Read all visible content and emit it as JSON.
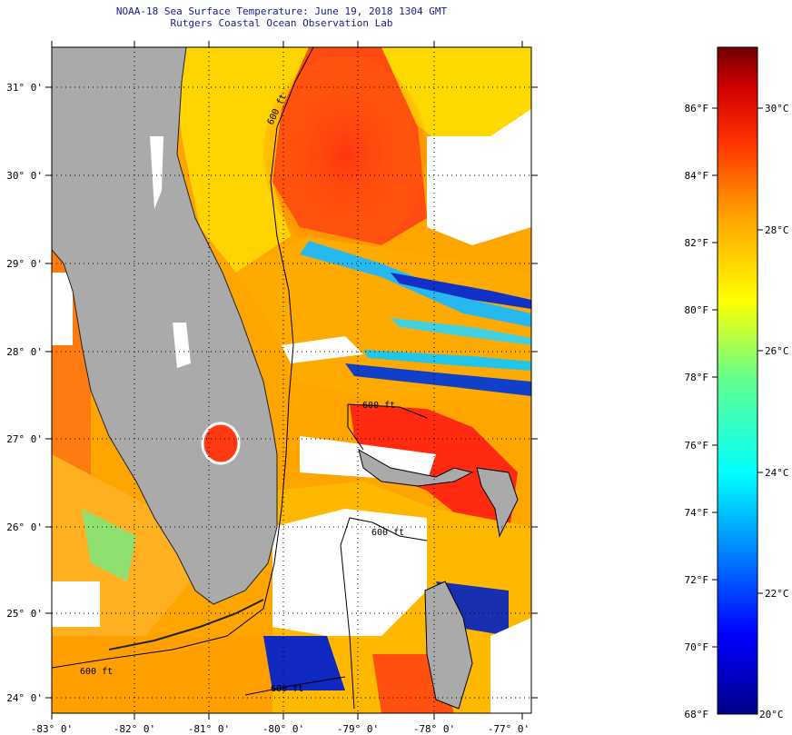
{
  "header": {
    "title_line1": "NOAA-18 Sea Surface Temperature:  June 19, 2018 1304 GMT",
    "title_line2": "Rutgers Coastal Ocean Observation Lab"
  },
  "map": {
    "lon_labels": [
      "-83° 0'",
      "-82° 0'",
      "-81° 0'",
      "-80° 0'",
      "-79° 0'",
      "-78° 0'",
      "-77° 0'"
    ],
    "lat_labels": [
      "31° 0'",
      "30° 0'",
      "29° 0'",
      "28° 0'",
      "27° 0'",
      "26° 0'",
      "25° 0'",
      "24° 0'"
    ],
    "isobath_labels": [
      "600 ft",
      "600 ft",
      "600 ft",
      "600 ft",
      "600 ft"
    ],
    "colors": {
      "land": "#aaaaaa",
      "cloud": "#ffffff",
      "warm": "#ff3b10",
      "mid": "#ffb000",
      "cool": "#20c8e0",
      "cold": "#1020c0"
    }
  },
  "colorbar": {
    "f_labels": [
      "86°F",
      "84°F",
      "82°F",
      "80°F",
      "78°F",
      "76°F",
      "74°F",
      "72°F",
      "70°F",
      "68°F"
    ],
    "c_labels": [
      "30°C",
      "28°C",
      "26°C",
      "24°C",
      "22°C",
      "20°C"
    ],
    "colors": [
      "#00008a",
      "#0000ff",
      "#00a0ff",
      "#00ffff",
      "#60ff90",
      "#ffff00",
      "#ffa000",
      "#ff3000",
      "#d00000",
      "#700000"
    ]
  }
}
